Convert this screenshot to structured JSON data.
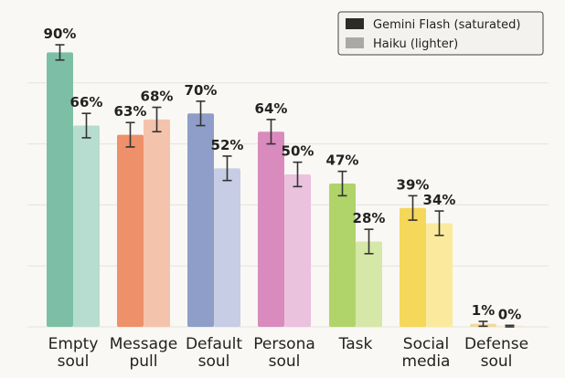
{
  "chart_data": {
    "type": "bar",
    "categories": [
      [
        "Empty",
        "soul"
      ],
      [
        "Message",
        "pull"
      ],
      [
        "Default",
        "soul"
      ],
      [
        "Persona",
        "soul"
      ],
      [
        "Task"
      ],
      [
        "Social",
        "media"
      ],
      [
        "Defense",
        "soul"
      ]
    ],
    "series": [
      {
        "name": "Gemini Flash (saturated)",
        "values": [
          90,
          63,
          70,
          64,
          47,
          39,
          1
        ],
        "error": [
          2.5,
          4,
          4,
          4,
          4,
          4,
          0.8
        ],
        "colors": [
          "#7dbfa6",
          "#ee9069",
          "#8e9ec8",
          "#d98bbd",
          "#b0d46a",
          "#f5d75a",
          "#f2d8a0"
        ]
      },
      {
        "name": "Haiku (lighter)",
        "values": [
          66,
          68,
          52,
          50,
          28,
          34,
          0
        ],
        "error": [
          4,
          4,
          4,
          4,
          4,
          4,
          0.5
        ],
        "colors": [
          "#b7ddd0",
          "#f4c3ac",
          "#c6cde4",
          "#ebc2de",
          "#d6e8a8",
          "#fbea9d",
          "#f6ead0"
        ]
      }
    ],
    "value_labels": [
      [
        "90%",
        "63%",
        "70%",
        "64%",
        "47%",
        "39%",
        "1%"
      ],
      [
        "66%",
        "68%",
        "52%",
        "50%",
        "28%",
        "34%",
        "0%"
      ]
    ],
    "legend": {
      "position": "top-right",
      "swatch_colors": [
        "#2b2b27",
        "#a9a9a6"
      ]
    },
    "ylim": [
      0,
      100
    ],
    "grid": true,
    "colors": {
      "background": "#f9f8f4",
      "grid": "#e4e3de",
      "text": "#222222",
      "error_bar": "#333333"
    }
  }
}
